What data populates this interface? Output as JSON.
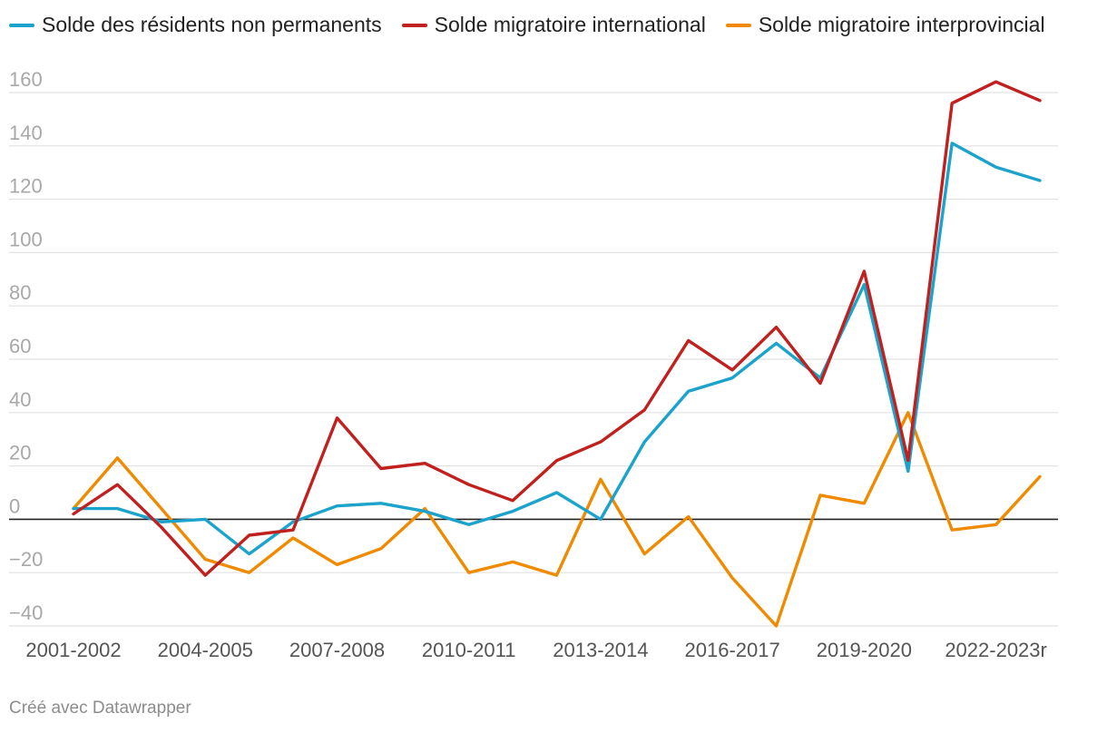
{
  "chart_data": {
    "type": "line",
    "title": "",
    "xlabel": "",
    "ylabel": "",
    "ylim": [
      -40,
      160
    ],
    "y_ticks": [
      160,
      140,
      120,
      100,
      80,
      60,
      40,
      20,
      0,
      -20,
      -40
    ],
    "y_tick_labels": [
      "160",
      "140",
      "120",
      "100",
      "80",
      "60",
      "40",
      "20",
      "0",
      "−20",
      "−40"
    ],
    "x_tick_labels": [
      {
        "index": 0,
        "label": "2001-2002"
      },
      {
        "index": 3,
        "label": "2004-2005"
      },
      {
        "index": 6,
        "label": "2007-2008"
      },
      {
        "index": 9,
        "label": "2010-2011"
      },
      {
        "index": 12,
        "label": "2013-2014"
      },
      {
        "index": 15,
        "label": "2016-2017"
      },
      {
        "index": 18,
        "label": "2019-2020"
      },
      {
        "index": 21,
        "label": "2022-2023r"
      }
    ],
    "categories": [
      "2001-2002",
      "2002-2003",
      "2003-2004",
      "2004-2005",
      "2005-2006",
      "2006-2007",
      "2007-2008",
      "2008-2009",
      "2009-2010",
      "2010-2011",
      "2011-2012",
      "2012-2013",
      "2013-2014",
      "2014-2015",
      "2015-2016",
      "2016-2017",
      "2017-2018",
      "2018-2019",
      "2019-2020",
      "2020-2021",
      "2021-2022",
      "2022-2023r",
      "2023-2024"
    ],
    "series": [
      {
        "name": "Solde des résidents non permanents",
        "color": "#1ba3cc",
        "values": [
          4,
          4,
          -1,
          0,
          -13,
          -1,
          5,
          6,
          3,
          -2,
          3,
          10,
          0,
          29,
          48,
          53,
          66,
          53,
          88,
          18,
          141,
          132,
          127
        ]
      },
      {
        "name": "Solde migratoire international",
        "color": "#c0201e",
        "values": [
          2,
          13,
          -3,
          -21,
          -6,
          -4,
          38,
          19,
          21,
          13,
          7,
          22,
          29,
          41,
          67,
          56,
          72,
          51,
          93,
          22,
          156,
          164,
          157
        ]
      },
      {
        "name": "Solde migratoire interprovincial",
        "color": "#f08a00",
        "values": [
          4,
          23,
          4,
          -15,
          -20,
          -7,
          -17,
          -11,
          4,
          -20,
          -16,
          -21,
          15,
          -13,
          1,
          -22,
          -40,
          9,
          6,
          40,
          -4,
          -2,
          16
        ]
      }
    ]
  },
  "footer": "Créé avec Datawrapper"
}
